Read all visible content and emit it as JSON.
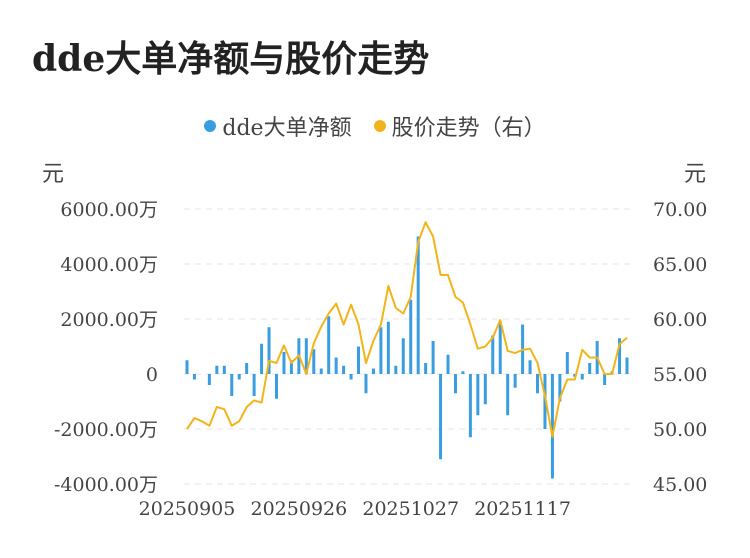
{
  "title": "dde大单净额与股价走势",
  "legend": [
    {
      "label": "dde大单净额",
      "color": "#3a9de0"
    },
    {
      "label": "股价走势（右）",
      "color": "#f2b41c"
    }
  ],
  "units": {
    "left": "元",
    "right": "元"
  },
  "chart_data": {
    "type": "bar+line",
    "ylim_left": [
      -4000,
      6000
    ],
    "ylim_right": [
      45,
      70
    ],
    "y_ticks_left": [
      "6000.00万",
      "4000.00万",
      "2000.00万",
      "0",
      "-2000.00万",
      "-4000.00万"
    ],
    "y_ticks_left_values": [
      6000,
      4000,
      2000,
      0,
      -2000,
      -4000
    ],
    "y_ticks_right": [
      "70.00",
      "65.00",
      "60.00",
      "55.00",
      "50.00",
      "45.00"
    ],
    "y_ticks_right_values": [
      70,
      65,
      60,
      55,
      50,
      45
    ],
    "x_ticks": [
      {
        "index": 0,
        "label": "20250905"
      },
      {
        "index": 15,
        "label": "20250926"
      },
      {
        "index": 30,
        "label": "20251027"
      },
      {
        "index": 45,
        "label": "20251117"
      }
    ],
    "grid": "horizontal dashed",
    "legend_position": "top-center",
    "series": [
      {
        "name": "dde大单净额",
        "type": "bar",
        "axis": "left",
        "color": "#3a9de0",
        "values": [
          500,
          -200,
          0,
          -400,
          300,
          300,
          -800,
          -200,
          400,
          -800,
          1100,
          1700,
          -900,
          800,
          500,
          1300,
          1300,
          900,
          200,
          2100,
          600,
          300,
          -200,
          1000,
          -700,
          200,
          1700,
          1900,
          300,
          1300,
          2700,
          5000,
          400,
          1200,
          -3100,
          700,
          -700,
          100,
          -2300,
          -1500,
          -1100,
          1400,
          1900,
          -1500,
          -500,
          1800,
          500,
          -700,
          -2000,
          -3800,
          -1000,
          800,
          -100,
          -200,
          400,
          1200,
          -400,
          100,
          1300,
          600
        ]
      },
      {
        "name": "股价走势（右）",
        "type": "line",
        "axis": "right",
        "color": "#f2b41c",
        "values": [
          50.0,
          51.0,
          50.7,
          50.3,
          52.0,
          51.8,
          50.3,
          50.7,
          52.0,
          52.6,
          52.4,
          56.2,
          56.0,
          57.6,
          56.0,
          56.7,
          55.0,
          57.8,
          59.3,
          60.5,
          61.4,
          59.5,
          61.3,
          59.5,
          56.0,
          58.0,
          59.5,
          63.0,
          61.0,
          60.5,
          62.0,
          67.0,
          68.8,
          67.5,
          64.0,
          64.0,
          62.0,
          61.5,
          59.5,
          57.3,
          57.5,
          58.3,
          59.9,
          57.1,
          56.9,
          57.2,
          57.3,
          56.0,
          53.0,
          49.3,
          52.8,
          54.5,
          54.5,
          57.2,
          56.5,
          56.5,
          55.0,
          55.0,
          57.7,
          58.3
        ]
      }
    ]
  }
}
